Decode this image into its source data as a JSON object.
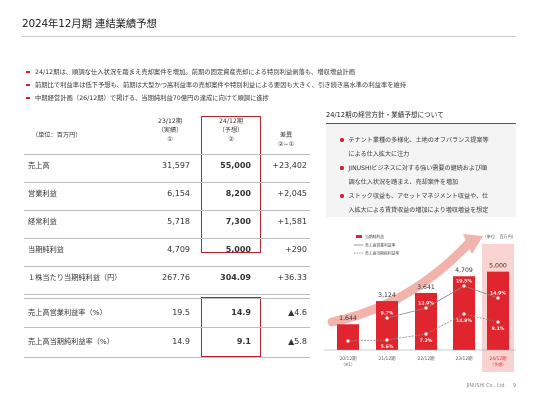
{
  "title": "2024年12月期 連結業績予想",
  "bullets": [
    "24/12期は、順調な仕入状況を踏まえ売却案件を増加。前期の固定資産売却による特別利益剥落も、増収増益計画",
    "前期比で利益率は低下予想も、前期は大型かつ高利益率の売却案件や特別利益による要因も大きく、引き続き高水準の利益率を維持",
    "中期経営計画（26/12期）で掲げる、当期純利益70億円の達成に向けて順調に進捗"
  ],
  "table": {
    "unit_label": "（単位：百万円）",
    "col_prev": [
      "23/12期",
      "（実績）",
      "①"
    ],
    "col_fcst": [
      "24/12期",
      "（予想）",
      "②"
    ],
    "col_diff": [
      "差異",
      "②−①"
    ],
    "rows": [
      {
        "label": "売上高",
        "prev": "31,597",
        "fcst": "55,000",
        "diff": "+23,402"
      },
      {
        "label": "営業利益",
        "prev": "6,154",
        "fcst": "8,200",
        "diff": "+2,045"
      },
      {
        "label": "経常利益",
        "prev": "5,718",
        "fcst": "7,300",
        "diff": "+1,581"
      },
      {
        "label": "当期純利益",
        "prev": "4,709",
        "fcst": "5,000",
        "diff": "+290"
      },
      {
        "label": "１株当たり当期純利益（円）",
        "prev": "267.76",
        "fcst": "304.09",
        "diff": "+36.33"
      }
    ],
    "ratio_rows": [
      {
        "label": "売上高営業利益率（%）",
        "prev": "19.5",
        "fcst": "14.9",
        "diff": "▲4.6"
      },
      {
        "label": "売上高当期純利益率（%）",
        "prev": "14.9",
        "fcst": "9.1",
        "diff": "▲5.8"
      }
    ]
  },
  "panel": {
    "title": "24/12期の経営方針・業績予想について",
    "items": [
      [
        "テナント業種の多様化、土地のオフバランス提案等",
        "による仕入拡大に注力"
      ],
      [
        "JINUSHIビジネスに対する強い需要の継続および順",
        "調な仕入状況を踏まえ、売却案件を増加"
      ],
      [
        "ストック収益も、アセットマネジメント収益や、仕",
        "入拡大による賃貸収益の増加により増収増益を想定"
      ]
    ]
  },
  "chart_data": {
    "type": "bar",
    "unit": "（単位：百万円）",
    "legend": [
      "当期純利益",
      "売上高営業利益率",
      "売上高当期純利益率"
    ],
    "categories": [
      "20/12期（※1）",
      "21/12期",
      "22/12期",
      "23/12期",
      "24/12期（予想）"
    ],
    "series": [
      {
        "name": "当期純利益",
        "values": [
          1644,
          3124,
          3641,
          4709,
          5000
        ]
      },
      {
        "name": "売上高営業利益率",
        "values": [
          null,
          9.7,
          12.9,
          19.5,
          14.9
        ]
      },
      {
        "name": "売上高当期純利益率",
        "values": [
          5.5,
          5.6,
          7.3,
          14.9,
          9.1
        ]
      }
    ],
    "value_labels": [
      "1,644",
      "3,124",
      "3,641",
      "4,709",
      "5,000"
    ],
    "op_labels": [
      "",
      "9.7%",
      "12.9%",
      "19.5%",
      "14.9%"
    ],
    "net_labels": [
      "5.5%",
      "5.6%",
      "7.3%",
      "14.9%",
      "9.1%"
    ],
    "colors": {
      "bar": "#e1252f",
      "bar_forecast_bg": "#f8d3cf",
      "accent": "#d31f2a",
      "line_gray": "#888888",
      "arrow": "#f3b3ad"
    }
  },
  "footer": "JINUSHI Co., Ltd.",
  "page_number": "9"
}
